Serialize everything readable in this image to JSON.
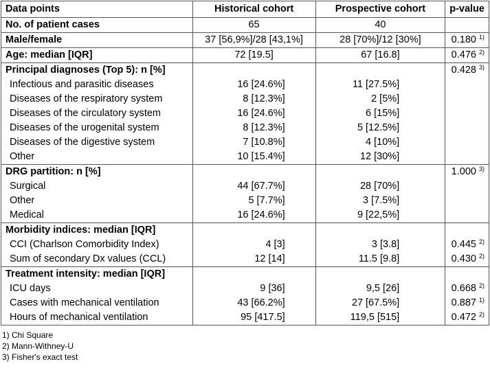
{
  "header": {
    "col1": "Data points",
    "col2": "Historical cohort",
    "col3": "Prospective cohort",
    "col4": "p-value"
  },
  "rows": [
    {
      "label": "No. of patient cases",
      "hist": "65",
      "prosp": "40",
      "p": "",
      "sup": ""
    },
    {
      "label": "Male/female",
      "hist": "37 [56,9%]/28 [43,1%]",
      "prosp": "28 [70%]/12 [30%]",
      "p": "0.180",
      "sup": "1)"
    },
    {
      "label": "Age: median [IQR]",
      "hist": "72 [19.5]",
      "prosp": "67 [16.8]",
      "p": "0.476",
      "sup": "2)"
    }
  ],
  "sections": [
    {
      "title": "Principal diagnoses (Top 5): n [%]",
      "p": "0.428",
      "sup": "3)",
      "items": [
        {
          "label": "Infectious and parasitic diseases",
          "hist": "16 [24.6%]",
          "prosp": "11 [27.5%]",
          "p": "",
          "sup": ""
        },
        {
          "label": "Diseases of the respiratory system",
          "hist": "8 [12.3%]",
          "prosp": "2 [5%]",
          "p": "",
          "sup": ""
        },
        {
          "label": "Diseases of the circulatory system",
          "hist": "16 [24.6%]",
          "prosp": "6 [15%]",
          "p": "",
          "sup": ""
        },
        {
          "label": "Diseases of the urogenital system",
          "hist": "8 [12.3%]",
          "prosp": "5 [12.5%]",
          "p": "",
          "sup": ""
        },
        {
          "label": "Diseases of the digestive system",
          "hist": "7 [10.8%]",
          "prosp": "4 [10%]",
          "p": "",
          "sup": ""
        },
        {
          "label": "Other",
          "hist": "10 [15.4%]",
          "prosp": "12 [30%]",
          "p": "",
          "sup": ""
        }
      ]
    },
    {
      "title": "DRG partition: n [%]",
      "p": "1.000",
      "sup": "3)",
      "items": [
        {
          "label": "Surgical",
          "hist": "44 [67.7%]",
          "prosp": "28 [70%]",
          "p": "",
          "sup": ""
        },
        {
          "label": "Other",
          "hist": "5 [7.7%]",
          "prosp": "3 [7.5%]",
          "p": "",
          "sup": ""
        },
        {
          "label": "Medical",
          "hist": "16 [24.6%]",
          "prosp": "9 [22,5%]",
          "p": "",
          "sup": ""
        }
      ]
    },
    {
      "title": "Morbidity indices: median [IQR]",
      "p": "",
      "sup": "",
      "items": [
        {
          "label": "CCI (Charlson Comorbidity Index)",
          "hist": "4 [3]",
          "prosp": "3 [3.8]",
          "p": "0.445",
          "sup": "2)"
        },
        {
          "label": "Sum of secondary Dx values (CCL)",
          "hist": "12 [14]",
          "prosp": "11.5 [9.8]",
          "p": "0.430",
          "sup": "2)"
        }
      ]
    },
    {
      "title": "Treatment intensity: median [IQR]",
      "p": "",
      "sup": "",
      "items": [
        {
          "label": "ICU days",
          "hist": "9 [36]",
          "prosp": "9,5 [26]",
          "p": "0.668",
          "sup": "2)"
        },
        {
          "label": "Cases with mechanical ventilation",
          "hist": "43 [66.2%]",
          "prosp": "27 [67.5%]",
          "p": "0.887",
          "sup": "1)"
        },
        {
          "label": "Hours of mechanical ventilation",
          "hist": "95 [417.5]",
          "prosp": "119,5 [515]",
          "p": "0.472",
          "sup": "2)"
        }
      ]
    }
  ],
  "footnotes": [
    "1) Chi Square",
    "2) Mann-Withney-U",
    "3) Fisher's exact test"
  ]
}
